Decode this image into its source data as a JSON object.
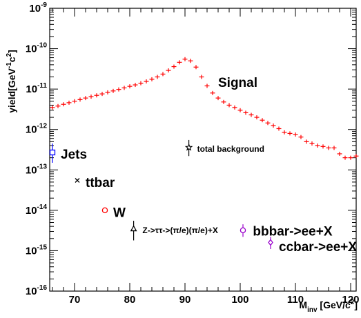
{
  "chart_data": {
    "type": "scatter",
    "title": "",
    "xlabel": "M",
    "xlabel_sub": "inv",
    "xlabel_unit": " [GeV/c",
    "xlabel_unit_sup": "2",
    "xlabel_unit_end": "]",
    "ylabel": "yield[GeV",
    "ylabel_sup1": "-1",
    "ylabel_mid": "c",
    "ylabel_sup2": "2",
    "ylabel_end": "]",
    "xlim": [
      65.5,
      121
    ],
    "ylim": [
      1e-16,
      1e-09
    ],
    "y_scale": "log",
    "x_ticks": [
      70,
      80,
      90,
      100,
      110,
      120
    ],
    "x_tick_labels": [
      "70",
      "80",
      "90",
      "100",
      "110",
      "120"
    ],
    "y_ticks": [
      1e-16,
      1e-15,
      1e-14,
      1e-13,
      1e-12,
      1e-11,
      1e-10,
      1e-09
    ],
    "y_tick_labels": [
      {
        "base": "10",
        "exp": "-16"
      },
      {
        "base": "10",
        "exp": "-15"
      },
      {
        "base": "10",
        "exp": "-14"
      },
      {
        "base": "10",
        "exp": "-13"
      },
      {
        "base": "10",
        "exp": "-12"
      },
      {
        "base": "10",
        "exp": "-11"
      },
      {
        "base": "10",
        "exp": "-10"
      },
      {
        "base": "10",
        "exp": "-9"
      }
    ],
    "grid": false,
    "series": [
      {
        "name": "Signal",
        "color": "#ff0000",
        "marker": "cross",
        "x": [
          66,
          67,
          68,
          69,
          70,
          71,
          72,
          73,
          74,
          75,
          76,
          77,
          78,
          79,
          80,
          81,
          82,
          83,
          84,
          85,
          86,
          87,
          88,
          89,
          90,
          91,
          92,
          93,
          94,
          95,
          96,
          97,
          98,
          99,
          100,
          101,
          102,
          103,
          104,
          105,
          106,
          107,
          108,
          109,
          110,
          111,
          112,
          113,
          114,
          115,
          116,
          117,
          118,
          119,
          120,
          121
        ],
        "y": [
          3.5e-12,
          3.8e-12,
          4.2e-12,
          4.6e-12,
          5e-12,
          5.5e-12,
          6e-12,
          6.5e-12,
          7e-12,
          7.6e-12,
          8.3e-12,
          9e-12,
          9.8e-12,
          1.07e-11,
          1.17e-11,
          1.27e-11,
          1.4e-11,
          1.55e-11,
          1.75e-11,
          2e-11,
          2.35e-11,
          2.9e-11,
          3.6e-11,
          4.6e-11,
          5.5e-11,
          5e-11,
          3.5e-11,
          2e-11,
          1.2e-11,
          8e-12,
          6e-12,
          4.8e-12,
          4e-12,
          3.5e-12,
          3e-12,
          2.6e-12,
          2.3e-12,
          2e-12,
          1.7e-12,
          1.45e-12,
          1.25e-12,
          1.05e-12,
          8.5e-13,
          8e-13,
          7.5e-13,
          6.5e-13,
          5e-13,
          4.5e-13,
          4e-13,
          3.8e-13,
          3.5e-13,
          3.5e-13,
          2.5e-13,
          2e-13,
          2e-13,
          2.2e-13
        ]
      }
    ],
    "points": [
      {
        "label": "Jets",
        "x": 66,
        "y": 2.7e-13,
        "marker": "open-square",
        "color": "#0000ff",
        "err_lo": 1.5e-13,
        "err_hi": 4.5e-13,
        "label_x": 67.5,
        "label_y": 2.5e-13,
        "label_size": "big"
      },
      {
        "label": "ttbar",
        "x": 70.5,
        "y": 5.5e-14,
        "marker": "x",
        "color": "#000000",
        "label_x": 72,
        "label_y": 5e-14,
        "label_size": "big"
      },
      {
        "label": "W",
        "x": 75.5,
        "y": 1e-14,
        "marker": "open-circle",
        "color": "#ff0000",
        "label_x": 77,
        "label_y": 9e-15,
        "label_size": "big"
      },
      {
        "label": "Z->ττ->(π/e)(π/e)+X",
        "x": 80.7,
        "y": 3.5e-15,
        "marker": "open-triangle",
        "color": "#000000",
        "err_lo": 1.8e-15,
        "err_hi": 5.5e-15,
        "label_x": 82.3,
        "label_y": 3.2e-15,
        "label_size": "small"
      },
      {
        "label": "total background",
        "x": 90.7,
        "y": 3.6e-13,
        "marker": "open-star",
        "color": "#000000",
        "err_lo": 2.2e-13,
        "err_hi": 5.5e-13,
        "label_x": 92.2,
        "label_y": 3.3e-13,
        "label_size": "small"
      },
      {
        "label": "bbbar->ee+X",
        "x": 100.5,
        "y": 3.2e-15,
        "marker": "open-circle",
        "color": "#9900cc",
        "err_lo": 2.2e-15,
        "err_hi": 4.5e-15,
        "label_x": 102.3,
        "label_y": 3.1e-15,
        "label_size": "big"
      },
      {
        "label": "ccbar->ee+X",
        "x": 105.5,
        "y": 1.6e-15,
        "marker": "open-diamond",
        "color": "#9900cc",
        "err_lo": 1.1e-15,
        "err_hi": 2.2e-15,
        "label_x": 107,
        "label_y": 1.3e-15,
        "label_size": "big"
      }
    ],
    "annotations": [
      {
        "text": "Signal",
        "x": 96,
        "y": 1.5e-11,
        "size": "big"
      }
    ]
  }
}
